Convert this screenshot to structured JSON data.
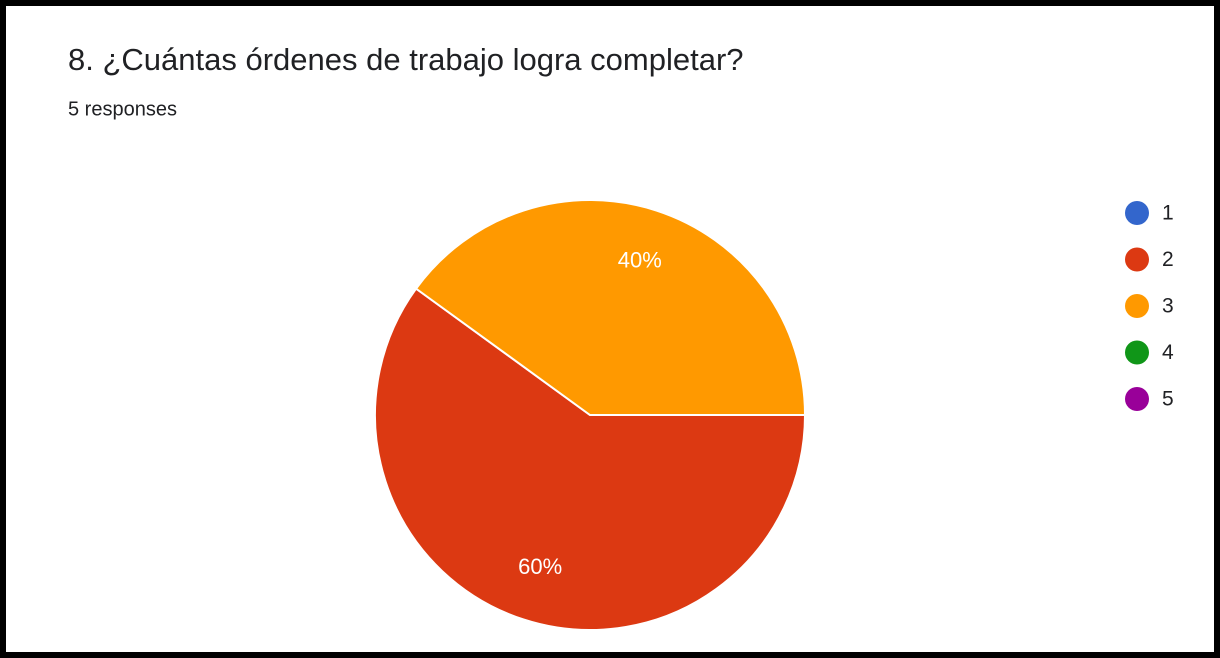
{
  "chart_data": {
    "type": "pie",
    "title": "8. ¿Cuántas órdenes de trabajo logra completar?",
    "subtitle": "5 responses",
    "categories": [
      "1",
      "2",
      "3",
      "4",
      "5"
    ],
    "values": [
      0,
      60,
      40,
      0,
      0
    ],
    "value_labels": [
      null,
      "60%",
      "40%",
      null,
      null
    ],
    "colors": [
      "#3366cc",
      "#dc3912",
      "#ff9900",
      "#109618",
      "#990099"
    ],
    "legend": "right"
  }
}
